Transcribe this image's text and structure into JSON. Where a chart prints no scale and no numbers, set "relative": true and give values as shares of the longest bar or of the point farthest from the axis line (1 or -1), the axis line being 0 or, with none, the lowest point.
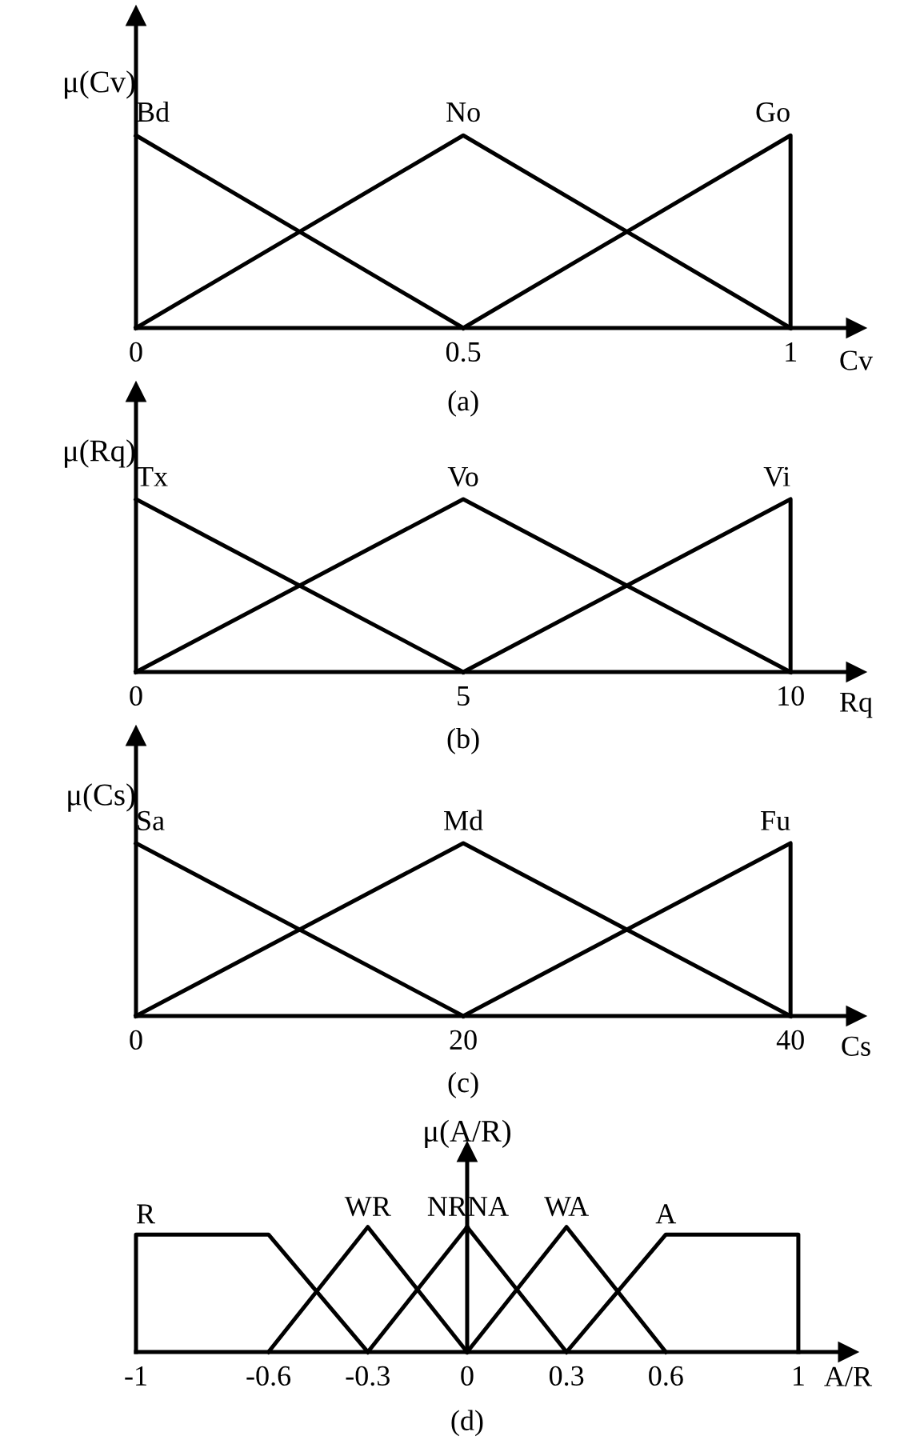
{
  "chart_data": [
    {
      "type": "line",
      "relative": true,
      "xlabel": "Cv",
      "ylabel": "μ(Cv)",
      "xlim": [
        0,
        1.1
      ],
      "xticks": [
        0,
        0.5,
        1
      ],
      "annotations": [
        "(a)"
      ],
      "line_style": "solid",
      "marker": "none",
      "grid": false,
      "legend": false,
      "series": [
        {
          "name": "Bd",
          "color": "#000000",
          "x": [
            0,
            0.5
          ],
          "values": [
            1,
            0
          ]
        },
        {
          "name": "No",
          "color": "#000000",
          "x": [
            0,
            0.5,
            1
          ],
          "values": [
            0,
            1,
            0
          ]
        },
        {
          "name": "Go",
          "color": "#000000",
          "x": [
            0.5,
            1,
            1
          ],
          "values": [
            0,
            1,
            0
          ]
        }
      ]
    },
    {
      "type": "line",
      "relative": true,
      "xlabel": "Rq",
      "ylabel": "μ(Rq)",
      "xlim": [
        0,
        11
      ],
      "xticks": [
        0,
        5,
        10
      ],
      "annotations": [
        "(b)"
      ],
      "line_style": "solid",
      "marker": "none",
      "grid": false,
      "legend": false,
      "series": [
        {
          "name": "Tx",
          "color": "#000000",
          "x": [
            0,
            5
          ],
          "values": [
            1,
            0
          ]
        },
        {
          "name": "Vo",
          "color": "#000000",
          "x": [
            0,
            5,
            10
          ],
          "values": [
            0,
            1,
            0
          ]
        },
        {
          "name": "Vi",
          "color": "#000000",
          "x": [
            5,
            10,
            10
          ],
          "values": [
            0,
            1,
            0
          ]
        }
      ]
    },
    {
      "type": "line",
      "relative": true,
      "xlabel": "Cs",
      "ylabel": "μ(Cs)",
      "xlim": [
        0,
        44
      ],
      "xticks": [
        0,
        20,
        40
      ],
      "annotations": [
        "(c)"
      ],
      "line_style": "solid",
      "marker": "none",
      "grid": false,
      "legend": false,
      "series": [
        {
          "name": "Sa",
          "color": "#000000",
          "x": [
            0,
            20
          ],
          "values": [
            1,
            0
          ]
        },
        {
          "name": "Md",
          "color": "#000000",
          "x": [
            0,
            20,
            40
          ],
          "values": [
            0,
            1,
            0
          ]
        },
        {
          "name": "Fu",
          "color": "#000000",
          "x": [
            20,
            40,
            40
          ],
          "values": [
            0,
            1,
            0
          ]
        }
      ]
    },
    {
      "type": "line",
      "relative": true,
      "xlabel": "A/R",
      "ylabel": "μ(A/R)",
      "xlim": [
        -1,
        1.15
      ],
      "xticks": [
        -1,
        -0.6,
        -0.3,
        0,
        0.3,
        0.6,
        1
      ],
      "annotations": [
        "(d)"
      ],
      "line_style": "solid",
      "marker": "none",
      "legend": false,
      "series": [
        {
          "name": "R",
          "color": "#000000",
          "x": [
            -1,
            -1,
            -0.6,
            -0.3
          ],
          "values": [
            0,
            0.94,
            0.94,
            0
          ]
        },
        {
          "name": "WR",
          "color": "#000000",
          "x": [
            -0.6,
            -0.3,
            0
          ],
          "values": [
            0,
            1,
            0
          ]
        },
        {
          "name": "NR",
          "color": "#000000",
          "x": [
            -0.3,
            0
          ],
          "values": [
            0,
            1
          ]
        },
        {
          "name": "NA",
          "color": "#000000",
          "x": [
            0,
            0.3
          ],
          "values": [
            1,
            0
          ]
        },
        {
          "name": "WA",
          "color": "#000000",
          "x": [
            0,
            0.3,
            0.6
          ],
          "values": [
            0,
            1,
            0
          ]
        },
        {
          "name": "A",
          "color": "#000000",
          "x": [
            0.3,
            0.6,
            1,
            1
          ],
          "values": [
            0,
            0.94,
            0.94,
            0
          ]
        }
      ]
    }
  ]
}
